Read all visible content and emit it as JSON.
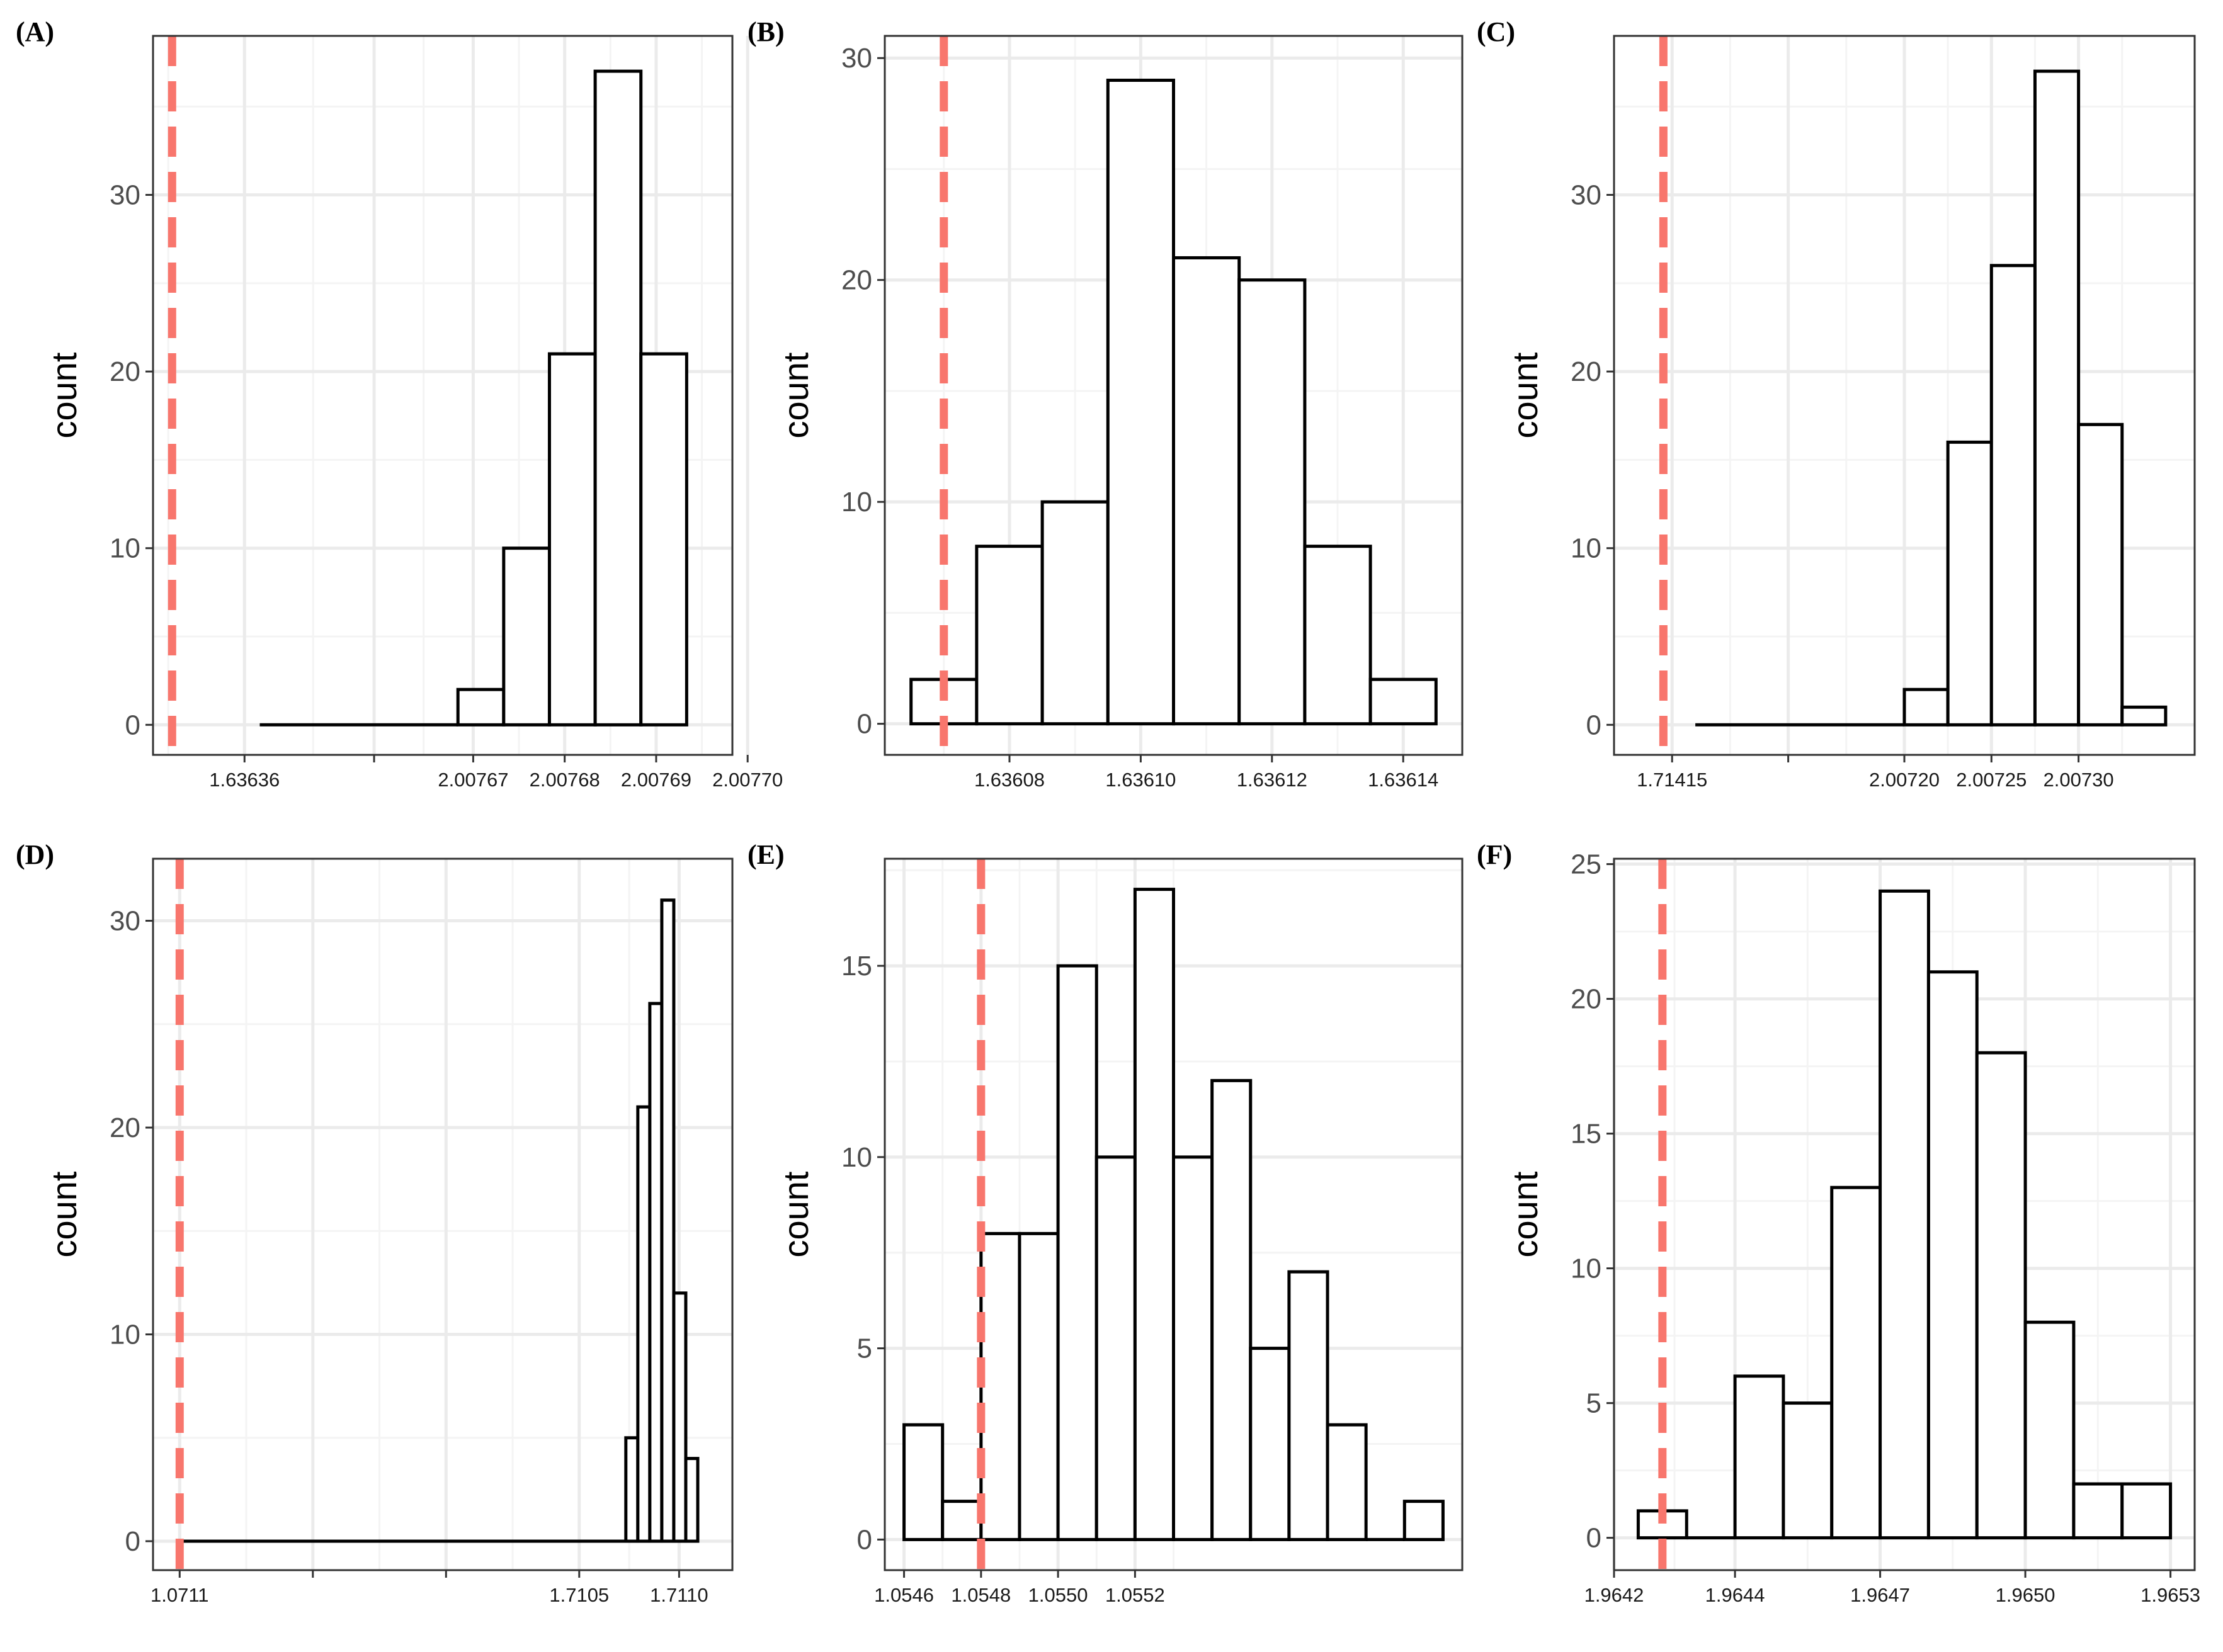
{
  "chart_data": [
    {
      "type": "bar",
      "panel": "(A)",
      "ylabel": "count",
      "xlabel": "",
      "bins": [
        {
          "from": 1.4,
          "to": 4.0,
          "value": 0
        },
        {
          "from": 4.0,
          "to": 4.6,
          "value": 2
        },
        {
          "from": 4.6,
          "to": 5.2,
          "value": 10
        },
        {
          "from": 5.2,
          "to": 5.8,
          "value": 21
        },
        {
          "from": 5.8,
          "to": 6.4,
          "value": 37
        },
        {
          "from": 6.4,
          "to": 7.0,
          "value": 21
        }
      ],
      "xlim": [
        0,
        7.6
      ],
      "ylim": [
        -1.7,
        39
      ],
      "yticks": [
        0,
        10,
        20,
        30
      ],
      "y_tick_labels": [
        "0",
        "10",
        "20",
        "30"
      ],
      "xticks": [
        1.2,
        2.9,
        4.2,
        5.4,
        6.6,
        7.8
      ],
      "x_tick_labels": [
        "1.63636",
        "",
        "2.00767",
        "2.00768",
        "2.00769",
        "2.00770"
      ],
      "x_minor_grid": [
        0.2,
        2.1,
        3.55,
        4.8,
        6.0,
        7.2
      ],
      "y_minor_grid": [
        5,
        15,
        25,
        35
      ],
      "reference_line": 0.25
    },
    {
      "type": "bar",
      "panel": "(B)",
      "ylabel": "count",
      "xlabel": "",
      "bins": [
        {
          "from": 0.0,
          "to": 1.0,
          "value": 2
        },
        {
          "from": 1.0,
          "to": 2.0,
          "value": 8
        },
        {
          "from": 2.0,
          "to": 3.0,
          "value": 10
        },
        {
          "from": 3.0,
          "to": 4.0,
          "value": 29
        },
        {
          "from": 4.0,
          "to": 5.0,
          "value": 21
        },
        {
          "from": 5.0,
          "to": 6.0,
          "value": 20
        },
        {
          "from": 6.0,
          "to": 7.0,
          "value": 8
        },
        {
          "from": 7.0,
          "to": 8.0,
          "value": 2
        }
      ],
      "xlim": [
        -0.4,
        8.4
      ],
      "ylim": [
        -1.4,
        31
      ],
      "yticks": [
        0,
        10,
        20,
        30
      ],
      "y_tick_labels": [
        "0",
        "10",
        "20",
        "30"
      ],
      "xticks": [
        1.5,
        3.5,
        5.5,
        7.5
      ],
      "x_tick_labels": [
        "1.63608",
        "1.63610",
        "1.63612",
        "1.63614"
      ],
      "x_minor_grid": [
        0.5,
        2.5,
        4.5,
        6.5
      ],
      "y_minor_grid": [
        5,
        15,
        25
      ],
      "reference_line": 0.5
    },
    {
      "type": "bar",
      "panel": "(C)",
      "ylabel": "count",
      "xlabel": "",
      "bins": [
        {
          "from": 1.4,
          "to": 5.0,
          "value": 0
        },
        {
          "from": 5.0,
          "to": 5.75,
          "value": 2
        },
        {
          "from": 5.75,
          "to": 6.5,
          "value": 16
        },
        {
          "from": 6.5,
          "to": 7.25,
          "value": 26
        },
        {
          "from": 7.25,
          "to": 8.0,
          "value": 37
        },
        {
          "from": 8.0,
          "to": 8.75,
          "value": 17
        },
        {
          "from": 8.75,
          "to": 9.5,
          "value": 1
        }
      ],
      "xlim": [
        0,
        10.0
      ],
      "ylim": [
        -1.7,
        39
      ],
      "yticks": [
        0,
        10,
        20,
        30
      ],
      "y_tick_labels": [
        "0",
        "10",
        "20",
        "30"
      ],
      "xticks": [
        1.0,
        3.0,
        5.0,
        6.5,
        8.0
      ],
      "x_tick_labels": [
        "1.71415",
        "",
        "2.00720",
        "2.00725",
        "2.00730"
      ],
      "x_minor_grid": [
        2.0,
        4.0,
        5.75,
        7.25,
        8.75
      ],
      "y_minor_grid": [
        5,
        15,
        25,
        35
      ],
      "reference_line": 0.85
    },
    {
      "type": "bar",
      "panel": "(D)",
      "ylabel": "count",
      "xlabel": "",
      "bins": [
        {
          "from": 0.4,
          "to": 7.1,
          "value": 0
        },
        {
          "from": 7.1,
          "to": 7.28,
          "value": 5
        },
        {
          "from": 7.28,
          "to": 7.46,
          "value": 21
        },
        {
          "from": 7.46,
          "to": 7.64,
          "value": 26
        },
        {
          "from": 7.64,
          "to": 7.82,
          "value": 31
        },
        {
          "from": 7.82,
          "to": 8.0,
          "value": 12
        },
        {
          "from": 8.0,
          "to": 8.18,
          "value": 4
        }
      ],
      "xlim": [
        0,
        8.7
      ],
      "ylim": [
        -1.4,
        33
      ],
      "yticks": [
        0,
        10,
        20,
        30
      ],
      "y_tick_labels": [
        "0",
        "10",
        "20",
        "30"
      ],
      "xticks": [
        0.4,
        2.4,
        4.4,
        6.4,
        7.9
      ],
      "x_tick_labels": [
        "1.0711",
        "",
        "",
        "1.7105",
        "1.7110"
      ],
      "x_minor_grid": [
        1.4,
        3.4,
        5.4,
        7.15
      ],
      "y_minor_grid": [
        5,
        15,
        25
      ],
      "reference_line": 0.4
    },
    {
      "type": "bar",
      "panel": "(E)",
      "ylabel": "count",
      "xlabel": "",
      "bins": [
        {
          "from": 1.0546,
          "to": 1.0547,
          "value": 3
        },
        {
          "from": 1.0547,
          "to": 1.0548,
          "value": 1
        },
        {
          "from": 1.0548,
          "to": 1.0549,
          "value": 8
        },
        {
          "from": 1.0549,
          "to": 1.055,
          "value": 8
        },
        {
          "from": 1.055,
          "to": 1.0551,
          "value": 15
        },
        {
          "from": 1.0551,
          "to": 1.0552,
          "value": 10
        },
        {
          "from": 1.0552,
          "to": 1.0553,
          "value": 17
        },
        {
          "from": 1.0553,
          "to": 1.0554,
          "value": 10
        },
        {
          "from": 1.0554,
          "to": 1.0555,
          "value": 12
        },
        {
          "from": 1.0555,
          "to": 1.0556,
          "value": 5
        },
        {
          "from": 1.0556,
          "to": 1.0557,
          "value": 7
        },
        {
          "from": 1.0557,
          "to": 1.0558,
          "value": 3
        },
        {
          "from": 1.0558,
          "to": 1.0559,
          "value": 0
        },
        {
          "from": 1.0559,
          "to": 1.056,
          "value": 1
        }
      ],
      "xlim": [
        1.05455,
        1.05605
      ],
      "ylim": [
        -0.8,
        17.8
      ],
      "yticks": [
        0,
        5,
        10,
        15
      ],
      "y_tick_labels": [
        "0",
        "5",
        "10",
        "15"
      ],
      "xticks": [
        1.0546,
        1.0548,
        1.055,
        1.0552
      ],
      "x_tick_labels": [
        "1.0546",
        "1.0548",
        "1.0550",
        "1.0552"
      ],
      "x_minor_grid": [
        1.0547,
        1.0549,
        1.0551,
        1.0553
      ],
      "y_minor_grid": [
        2.5,
        7.5,
        12.5,
        17.5
      ],
      "reference_line": 1.0548
    },
    {
      "type": "bar",
      "panel": "(F)",
      "ylabel": "count",
      "xlabel": "",
      "bins": [
        {
          "from": 0.5,
          "to": 1.5,
          "value": 1
        },
        {
          "from": 1.5,
          "to": 2.5,
          "value": 0
        },
        {
          "from": 2.5,
          "to": 3.5,
          "value": 6
        },
        {
          "from": 3.5,
          "to": 4.5,
          "value": 5
        },
        {
          "from": 4.5,
          "to": 5.5,
          "value": 13
        },
        {
          "from": 5.5,
          "to": 6.5,
          "value": 24
        },
        {
          "from": 6.5,
          "to": 7.5,
          "value": 21
        },
        {
          "from": 7.5,
          "to": 8.5,
          "value": 18
        },
        {
          "from": 8.5,
          "to": 9.5,
          "value": 8
        },
        {
          "from": 9.5,
          "to": 10.5,
          "value": 2
        },
        {
          "from": 10.5,
          "to": 11.5,
          "value": 2
        }
      ],
      "xlim": [
        0.0,
        12.0
      ],
      "ylim": [
        -1.2,
        25.2
      ],
      "yticks": [
        0,
        5,
        10,
        15,
        20,
        25
      ],
      "y_tick_labels": [
        "0",
        "5",
        "10",
        "15",
        "20",
        "25"
      ],
      "xticks": [
        0.0,
        2.5,
        5.5,
        8.5,
        11.5
      ],
      "x_tick_labels": [
        "1.9642",
        "1.9644",
        "1.9647",
        "1.9650",
        "1.9653"
      ],
      "x_minor_grid": [
        1.25,
        4.0,
        7.0,
        10.0
      ],
      "y_minor_grid": [
        2.5,
        7.5,
        12.5,
        17.5,
        22.5
      ],
      "reference_line": 1.0
    }
  ],
  "colors": {
    "reference_line": "#f8766d",
    "bar_fill": "#ffffff",
    "bar_stroke": "#000000",
    "grid_major": "#ebebeb",
    "grid_minor": "#f4f4f4",
    "panel_border": "#333333"
  }
}
